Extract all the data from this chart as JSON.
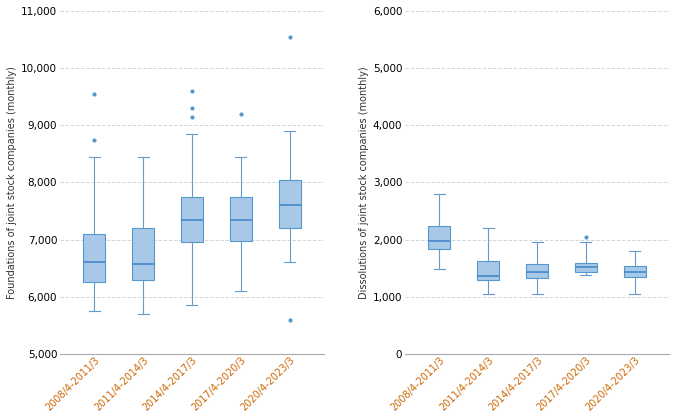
{
  "categories": [
    "2008/4-2011/3",
    "2011/4-2014/3",
    "2014/4-2017/3",
    "2017/4-2020/3",
    "2020/4-2023/3"
  ],
  "foundations": {
    "whislo": [
      5750,
      5700,
      5850,
      6100,
      6600
    ],
    "q1": [
      6250,
      6300,
      6950,
      6980,
      7200
    ],
    "med": [
      6600,
      6580,
      7350,
      7350,
      7600
    ],
    "q3": [
      7100,
      7200,
      7750,
      7750,
      8050
    ],
    "whishi": [
      8450,
      8450,
      8850,
      8450,
      8900
    ],
    "fliers_high": [
      [
        9550,
        8750
      ],
      [],
      [
        9600,
        9300,
        9150
      ],
      [
        9200
      ],
      [
        10550
      ]
    ],
    "fliers_low": [
      [],
      [],
      [],
      [],
      [
        5600
      ]
    ]
  },
  "dissolutions": {
    "whislo": [
      1480,
      1050,
      1050,
      1380,
      1050
    ],
    "q1": [
      1830,
      1290,
      1330,
      1440,
      1340
    ],
    "med": [
      1980,
      1370,
      1440,
      1520,
      1440
    ],
    "q3": [
      2230,
      1630,
      1580,
      1590,
      1540
    ],
    "whishi": [
      2800,
      2200,
      1950,
      1950,
      1800
    ],
    "fliers_high": [
      [],
      [],
      [],
      [
        2050
      ],
      []
    ],
    "fliers_low": [
      [],
      [],
      [],
      [],
      []
    ]
  },
  "box_facecolor": "#a8c8e8",
  "box_edgecolor": "#5599cc",
  "median_color": "#4488cc",
  "flier_color": "#5599cc",
  "whisker_color": "#6699cc",
  "cap_color": "#6699cc",
  "grid_color": "#d0d8e0",
  "xlabel_color": "#cc6600",
  "ylabel_color": "#333333",
  "ylabel_left": "Foundations of joint stock companies (monthly)",
  "ylabel_right": "Dissolutions of joint stock companies (monthly)",
  "ylim_left": [
    5000,
    11000
  ],
  "ylim_right": [
    0,
    6000
  ],
  "yticks_left": [
    5000,
    6000,
    7000,
    8000,
    9000,
    10000,
    11000
  ],
  "yticks_right": [
    0,
    1000,
    2000,
    3000,
    4000,
    5000,
    6000
  ],
  "background_color": "#ffffff",
  "figsize": [
    6.76,
    4.2
  ],
  "dpi": 100
}
